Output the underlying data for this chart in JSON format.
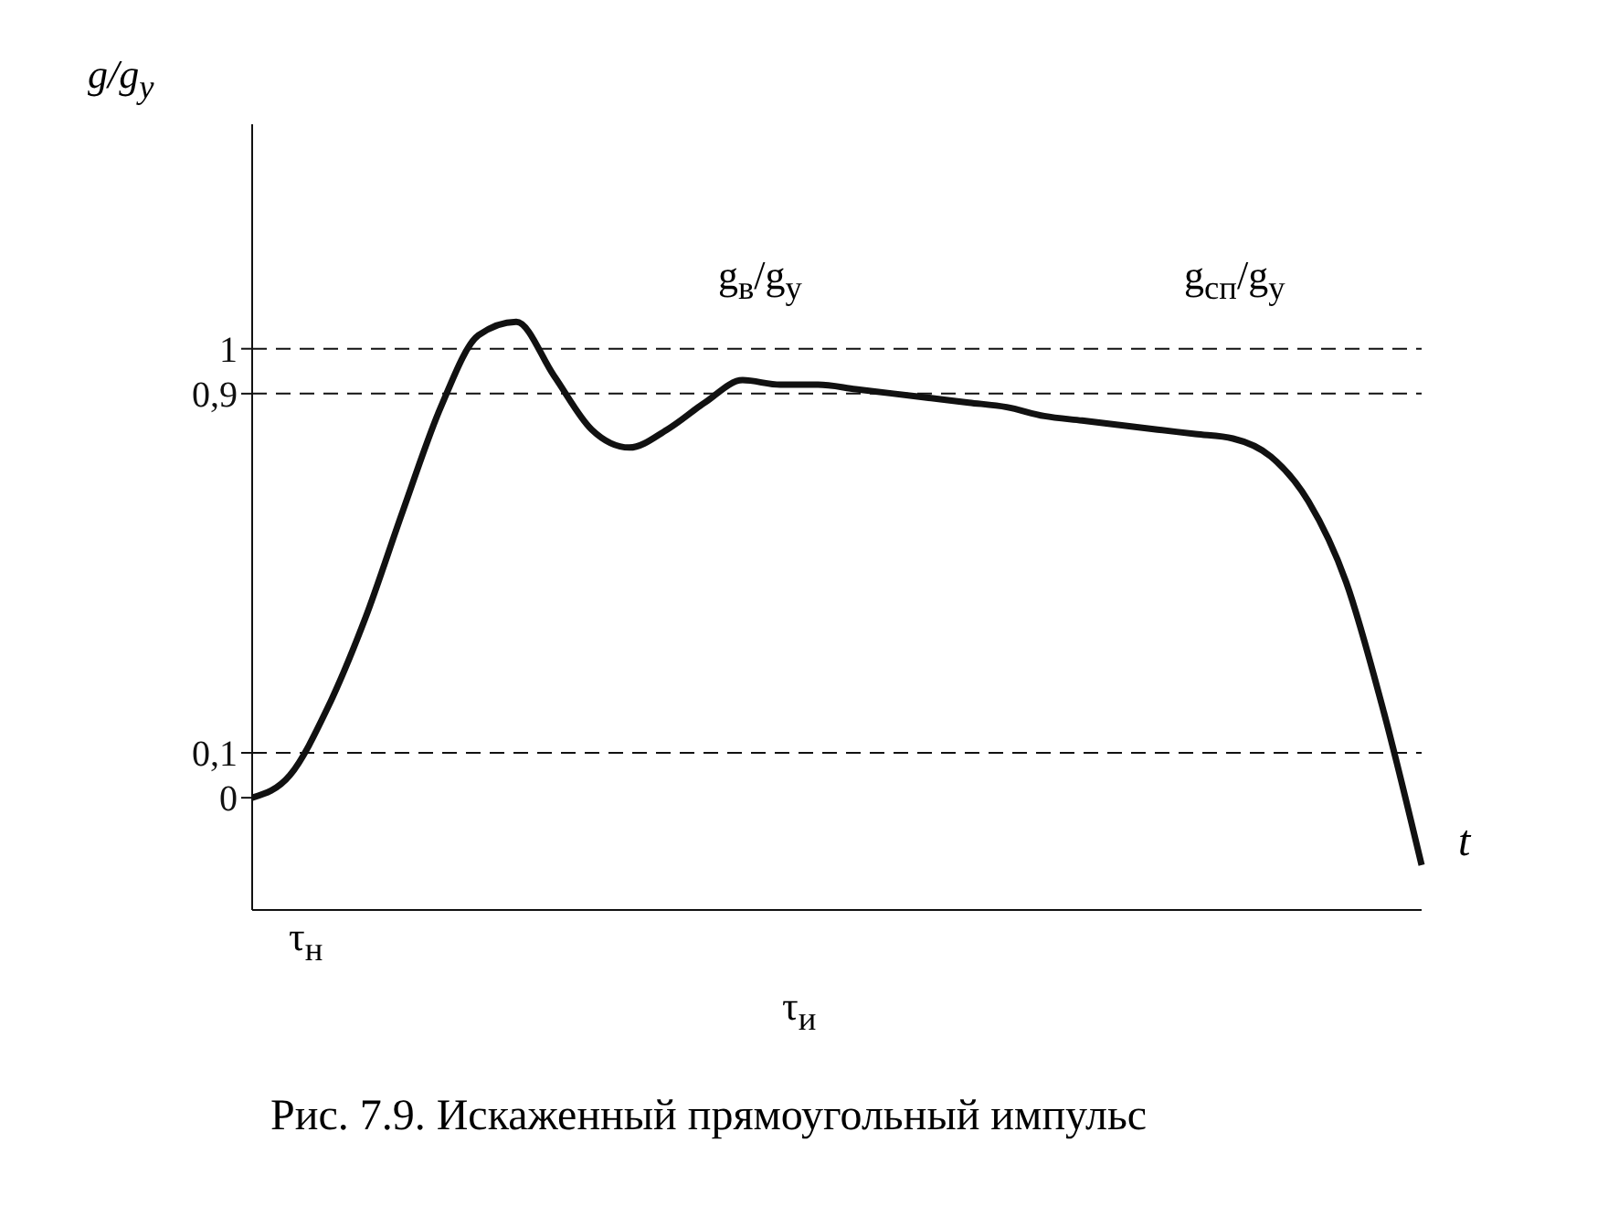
{
  "chart_data": {
    "type": "line",
    "xlabel": "t",
    "ylabel": "g/g$_{у}$",
    "categories": [
      null,
      null,
      null,
      null,
      null,
      null,
      null,
      null,
      null,
      null,
      null,
      null,
      null,
      null,
      null,
      null,
      null,
      null,
      null,
      null,
      null,
      null,
      null,
      null,
      null,
      null,
      null,
      null,
      null,
      null,
      null,
      null
    ],
    "series": [
      {
        "color": "#111111",
        "values": [
          0,
          0.05,
          0.2,
          0.4,
          0.64,
          0.87,
          1.03,
          1.06,
          0.94,
          0.82,
          0.78,
          0.82,
          0.88,
          0.93,
          0.92,
          0.92,
          0.91,
          0.9,
          0.89,
          0.88,
          0.87,
          0.85,
          0.84,
          0.83,
          0.82,
          0.81,
          0.8,
          0.76,
          0.66,
          0.48,
          0.19,
          -0.15
        ]
      }
    ],
    "ylim": [
      -0.25,
      1.5
    ],
    "yticks": [
      0,
      {
        "value": 0.1,
        "label": "0,1"
      },
      {
        "value": 0.9,
        "label": "0,9"
      },
      1
    ],
    "tick_labels": "y",
    "marker": "none",
    "line_style": "solid",
    "ref_lines": [
      {
        "axis": "y",
        "value": 1,
        "line_style": "dashed",
        "color": "#111111"
      },
      {
        "axis": "y",
        "value": 0.9,
        "line_style": "dashed",
        "color": "#111111"
      },
      {
        "axis": "y",
        "value": 0.1,
        "line_style": "dashed",
        "color": "#111111"
      }
    ],
    "annotations": [
      "τ$_{н}$",
      "τ$_{и}$",
      "g$_{в}$/g$_{у}$",
      "g$_{сп}$/g$_{у}$",
      "Рис. 7.9. Искаженный прямоугольный импульс"
    ]
  }
}
